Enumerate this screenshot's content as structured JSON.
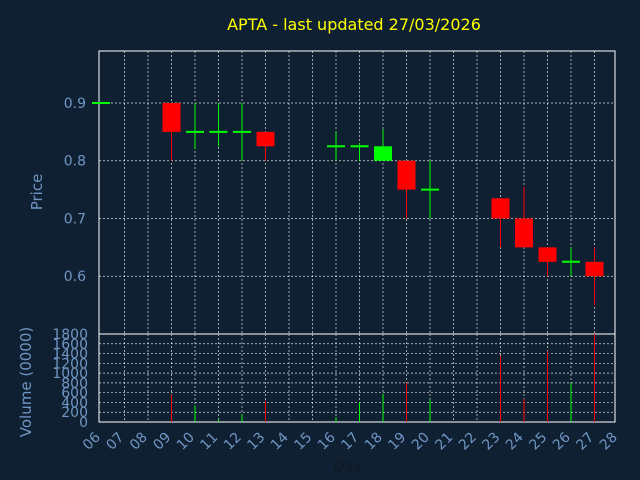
{
  "chart_data": {
    "type": "candlestick",
    "title": "APTA - last updated 27/03/2026",
    "xlabel": "Day",
    "price_panel": {
      "ylabel": "Price",
      "ylim": [
        0.5,
        0.99
      ],
      "yticks": [
        0.6,
        0.7,
        0.8,
        0.9
      ],
      "ytick_labels": [
        "0.6",
        "0.7",
        "0.8",
        "0.9"
      ],
      "grid": true
    },
    "volume_panel": {
      "ylabel": "Volume (0000)",
      "ylim": [
        0,
        1800
      ],
      "yticks": [
        0,
        200,
        400,
        600,
        800,
        1000,
        1200,
        1400,
        1600,
        1800
      ],
      "ytick_labels": [
        "0",
        "200",
        "400",
        "600",
        "800",
        "1000",
        "1200",
        "1400",
        "1600",
        "1800"
      ],
      "grid": true
    },
    "x_ticks": [
      "06",
      "07",
      "08",
      "09",
      "10",
      "11",
      "12",
      "13",
      "14",
      "15",
      "16",
      "17",
      "18",
      "19",
      "20",
      "21",
      "22",
      "23",
      "24",
      "25",
      "26",
      "27",
      "28"
    ],
    "colors": {
      "up": "#00ff00",
      "down": "#ff0000",
      "background": "#102033",
      "title": "#ffff00",
      "axis_text": "#6f96c2"
    },
    "candles": [
      {
        "day": "06",
        "open": 0.9,
        "high": 0.9,
        "low": 0.9,
        "close": 0.9,
        "volume": 0
      },
      {
        "day": "09",
        "open": 0.9,
        "high": 0.9,
        "low": 0.8,
        "close": 0.85,
        "volume": 560
      },
      {
        "day": "10",
        "open": 0.85,
        "high": 0.9,
        "low": 0.82,
        "close": 0.85,
        "volume": 340
      },
      {
        "day": "11",
        "open": 0.85,
        "high": 0.9,
        "low": 0.825,
        "close": 0.85,
        "volume": 50
      },
      {
        "day": "12",
        "open": 0.85,
        "high": 0.9,
        "low": 0.8,
        "close": 0.85,
        "volume": 160
      },
      {
        "day": "13",
        "open": 0.85,
        "high": 0.85,
        "low": 0.8,
        "close": 0.825,
        "volume": 420
      },
      {
        "day": "16",
        "open": 0.825,
        "high": 0.85,
        "low": 0.8,
        "close": 0.825,
        "volume": 100
      },
      {
        "day": "17",
        "open": 0.825,
        "high": 0.83,
        "low": 0.8,
        "close": 0.825,
        "volume": 410
      },
      {
        "day": "18",
        "open": 0.8,
        "high": 0.855,
        "low": 0.8,
        "close": 0.825,
        "volume": 580
      },
      {
        "day": "19",
        "open": 0.8,
        "high": 0.8,
        "low": 0.7,
        "close": 0.75,
        "volume": 800
      },
      {
        "day": "20",
        "open": 0.75,
        "high": 0.8,
        "low": 0.7,
        "close": 0.75,
        "volume": 460
      },
      {
        "day": "23",
        "open": 0.735,
        "high": 0.735,
        "low": 0.65,
        "close": 0.7,
        "volume": 1350
      },
      {
        "day": "24",
        "open": 0.7,
        "high": 0.755,
        "low": 0.65,
        "close": 0.65,
        "volume": 470
      },
      {
        "day": "25",
        "open": 0.65,
        "high": 0.65,
        "low": 0.6,
        "close": 0.625,
        "volume": 1450
      },
      {
        "day": "26",
        "open": 0.625,
        "high": 0.65,
        "low": 0.6,
        "close": 0.625,
        "volume": 800
      },
      {
        "day": "27",
        "open": 0.625,
        "high": 0.65,
        "low": 0.55,
        "close": 0.6,
        "volume": 1800
      }
    ]
  }
}
